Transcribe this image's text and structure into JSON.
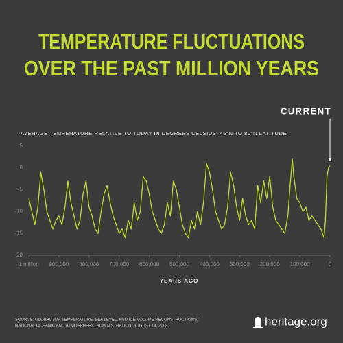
{
  "chart_data": {
    "type": "line",
    "title": [
      "TEMPERATURE FLUCTUATIONS",
      "OVER THE PAST MILLION YEARS"
    ],
    "subtitle": "AVERAGE TEMPERATURE RELATIVE TO TODAY IN DEGREES CELSIUS, 45°N TO 80°N LATITUDE",
    "annotation": "CURRENT",
    "x_label": "YEARS AGO",
    "source": [
      "SOURCE: GLOBAL 3MA TEMPERATURE, SEA LEVEL, AND ICE VOLUME RECONSTRUCTIONS,”",
      "NATIONAL OCEANIC AND ATMOSPHERIC ADMINISTRATION, AUGUST 14, 2008"
    ],
    "brand": "heritage.org",
    "color": "#c6d92f",
    "x": [
      1000000,
      990000,
      980000,
      970000,
      960000,
      950000,
      940000,
      930000,
      920000,
      910000,
      900000,
      890000,
      880000,
      870000,
      860000,
      850000,
      840000,
      830000,
      820000,
      810000,
      800000,
      790000,
      780000,
      770000,
      760000,
      750000,
      740000,
      730000,
      720000,
      710000,
      700000,
      690000,
      680000,
      670000,
      660000,
      650000,
      640000,
      630000,
      620000,
      610000,
      600000,
      590000,
      580000,
      570000,
      560000,
      550000,
      540000,
      530000,
      520000,
      510000,
      500000,
      490000,
      480000,
      470000,
      460000,
      450000,
      440000,
      430000,
      420000,
      410000,
      400000,
      390000,
      380000,
      370000,
      360000,
      350000,
      340000,
      330000,
      320000,
      310000,
      300000,
      290000,
      280000,
      270000,
      260000,
      250000,
      240000,
      230000,
      220000,
      210000,
      200000,
      190000,
      180000,
      170000,
      160000,
      150000,
      140000,
      130000,
      125000,
      120000,
      110000,
      100000,
      90000,
      80000,
      70000,
      60000,
      50000,
      40000,
      30000,
      20000,
      15000,
      10000,
      5000,
      0
    ],
    "values": [
      -7,
      -10,
      -13,
      -9,
      -1,
      -5,
      -10,
      -12,
      -14,
      -12,
      -11,
      -13,
      -9,
      -3,
      -8,
      -11,
      -14,
      -12,
      -6,
      -3,
      -9,
      -11,
      -14,
      -15,
      -10,
      -6,
      -4,
      -8,
      -11,
      -13,
      -15,
      -14,
      -16,
      -12,
      -14,
      -8,
      -12,
      -10,
      -2,
      -3,
      -6,
      -10,
      -12,
      -14,
      -15,
      -13,
      -8,
      -11,
      -3,
      -5,
      -9,
      -13,
      -15,
      -16,
      -12,
      -14,
      -10,
      -13,
      -8,
      1,
      -1,
      -5,
      -10,
      -12,
      -14,
      -13,
      -9,
      -1,
      -4,
      -9,
      -12,
      -7,
      -11,
      -13,
      -12,
      -14,
      -4,
      -8,
      -3,
      -7,
      -2,
      -9,
      -12,
      -13,
      -14,
      -15,
      -11,
      -2,
      2,
      -2,
      -7,
      -8,
      -10,
      -9,
      -12,
      -11,
      -12,
      -13,
      -14,
      -16,
      -12,
      -2,
      0,
      0.5
    ],
    "xlim": [
      1000000,
      0
    ],
    "xticks": [
      {
        "value": 1000000,
        "label": "1 million"
      },
      {
        "value": 900000,
        "label": "900,000"
      },
      {
        "value": 800000,
        "label": "800,000"
      },
      {
        "value": 700000,
        "label": "700,000"
      },
      {
        "value": 600000,
        "label": "600,000"
      },
      {
        "value": 500000,
        "label": "500,000"
      },
      {
        "value": 400000,
        "label": "400,000"
      },
      {
        "value": 300000,
        "label": "300,000"
      },
      {
        "value": 200000,
        "label": "200,000"
      },
      {
        "value": 100000,
        "label": "100,000"
      },
      0
    ],
    "ylim": [
      -20,
      5
    ],
    "yticks": [
      -20,
      -15,
      -10,
      -5,
      0,
      5
    ]
  }
}
